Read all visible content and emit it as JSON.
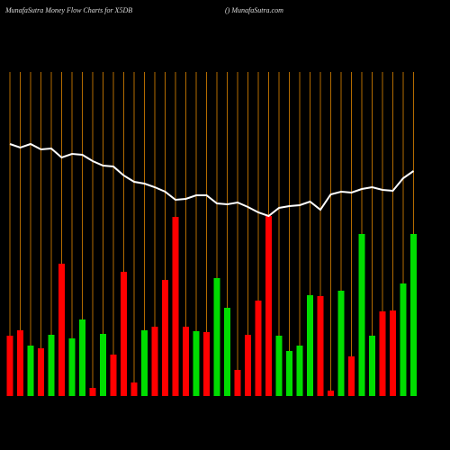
{
  "chart_data": {
    "type": "bar",
    "title": "MunafaSutra  Money Flow  Charts for X5DB",
    "subtitle": "() MunafaSutra.com",
    "ylim": [
      0,
      440
    ],
    "series": [
      {
        "type": "bar",
        "colors": [
          "#ff0000",
          "#ff0000",
          "#00dd00",
          "#ff0000",
          "#00dd00",
          "#ff0000",
          "#00dd00",
          "#00dd00",
          "#ff0000",
          "#00dd00",
          "#ff0000",
          "#ff0000",
          "#ff0000",
          "#00dd00",
          "#ff0000",
          "#ff0000",
          "#ff0000",
          "#ff0000",
          "#00dd00",
          "#ff0000",
          "#00dd00",
          "#00dd00",
          "#ff0000",
          "#ff0000",
          "#ff0000",
          "#ff0000",
          "#00dd00",
          "#00dd00",
          "#00dd00",
          "#00dd00",
          "#ff0000",
          "#ff0000",
          "#00dd00",
          "#ff0000",
          "#00dd00",
          "#00dd00",
          "#ff0000",
          "#ff0000",
          "#00dd00",
          "#00dd00"
        ],
        "values": [
          67,
          73,
          56,
          53,
          68,
          147,
          64,
          85,
          9,
          69,
          46,
          138,
          15,
          73,
          77,
          129,
          199,
          77,
          72,
          71,
          131,
          98,
          29,
          68,
          106,
          200,
          67,
          50,
          56,
          112,
          111,
          6,
          117,
          44,
          180,
          67,
          94,
          95,
          125,
          180
        ]
      },
      {
        "type": "line",
        "color": "#ffffff",
        "values": [
          280,
          276,
          280,
          274,
          275,
          265,
          269,
          268,
          261,
          256,
          255,
          245,
          238,
          236,
          232,
          227,
          218,
          219,
          223,
          223,
          214,
          213,
          215,
          210,
          204,
          200,
          209,
          211,
          212,
          216,
          207,
          224,
          227,
          226,
          230,
          232,
          229,
          228,
          242,
          250
        ]
      }
    ]
  }
}
